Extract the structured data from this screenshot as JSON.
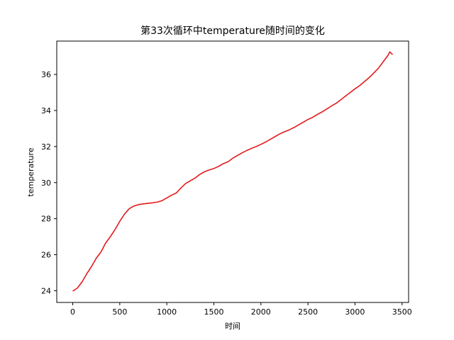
{
  "chart_data": {
    "type": "line",
    "title": "第33次循环中temperature随时间的变化",
    "xlabel": "时间",
    "ylabel": "temperature",
    "xlim": [
      -170,
      3570
    ],
    "ylim": [
      23.35,
      37.85
    ],
    "xticks": [
      0,
      500,
      1000,
      1500,
      2000,
      2500,
      3000,
      3500
    ],
    "yticks": [
      24,
      26,
      28,
      30,
      32,
      34,
      36
    ],
    "grid": false,
    "series": [
      {
        "color": "#e31a1c",
        "x": [
          0,
          50,
          100,
          150,
          200,
          250,
          300,
          350,
          400,
          450,
          500,
          550,
          600,
          650,
          700,
          750,
          800,
          850,
          900,
          950,
          1000,
          1050,
          1100,
          1150,
          1200,
          1250,
          1300,
          1350,
          1400,
          1450,
          1500,
          1550,
          1600,
          1650,
          1700,
          1750,
          1800,
          1850,
          1900,
          1950,
          2000,
          2050,
          2100,
          2150,
          2200,
          2250,
          2300,
          2350,
          2400,
          2450,
          2500,
          2550,
          2600,
          2650,
          2700,
          2750,
          2800,
          2850,
          2900,
          2950,
          3000,
          3050,
          3100,
          3150,
          3200,
          3250,
          3300,
          3350,
          3370,
          3400
        ],
        "y": [
          23.98,
          24.15,
          24.5,
          24.95,
          25.35,
          25.8,
          26.15,
          26.65,
          27.0,
          27.4,
          27.85,
          28.25,
          28.55,
          28.7,
          28.78,
          28.82,
          28.85,
          28.88,
          28.92,
          29.0,
          29.15,
          29.3,
          29.42,
          29.7,
          29.95,
          30.1,
          30.25,
          30.45,
          30.6,
          30.7,
          30.78,
          30.9,
          31.05,
          31.15,
          31.35,
          31.5,
          31.65,
          31.78,
          31.9,
          32.0,
          32.12,
          32.25,
          32.4,
          32.55,
          32.7,
          32.82,
          32.92,
          33.05,
          33.2,
          33.35,
          33.5,
          33.62,
          33.78,
          33.92,
          34.08,
          34.25,
          34.4,
          34.6,
          34.8,
          35.0,
          35.2,
          35.38,
          35.6,
          35.82,
          36.08,
          36.35,
          36.7,
          37.05,
          37.25,
          37.1
        ]
      }
    ]
  }
}
